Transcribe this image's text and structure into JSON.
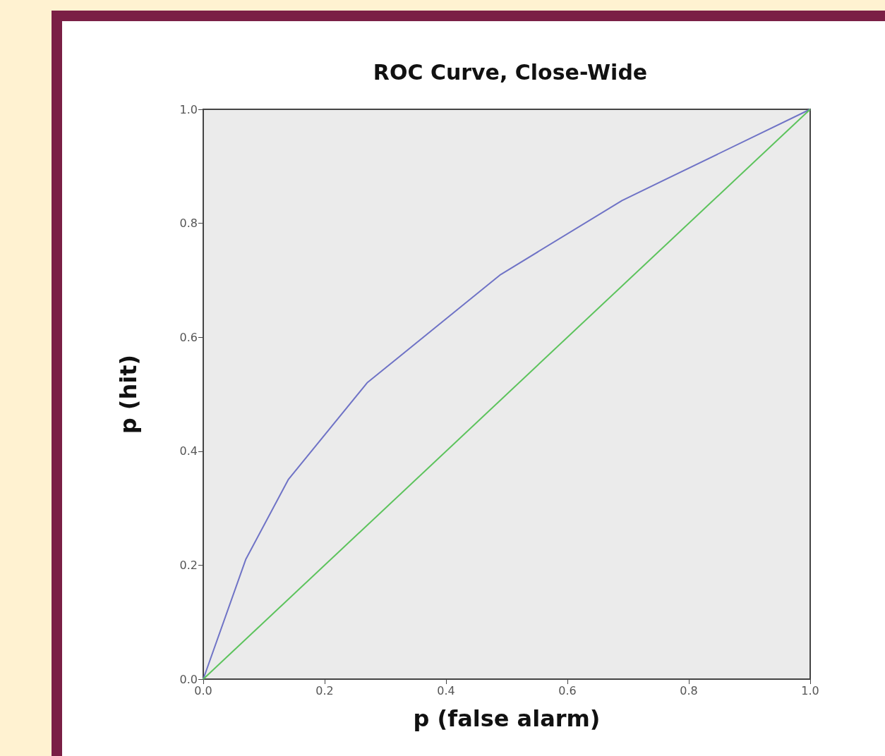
{
  "chart_data": {
    "type": "line",
    "title": "ROC Curve, Close-Wide",
    "xlabel": "p (false alarm)",
    "ylabel": "p (hit)",
    "xlim": [
      0,
      1
    ],
    "ylim": [
      0,
      1
    ],
    "xticks": [
      {
        "value": 0,
        "label": "0.0"
      },
      {
        "value": 0.2,
        "label": "0.2"
      },
      {
        "value": 0.4,
        "label": "0.4"
      },
      {
        "value": 0.6,
        "label": "0.6"
      },
      {
        "value": 0.8,
        "label": "0.8"
      },
      {
        "value": 1,
        "label": "1.0"
      }
    ],
    "yticks": [
      {
        "value": 0,
        "label": "0.0"
      },
      {
        "value": 0.2,
        "label": "0.2"
      },
      {
        "value": 0.4,
        "label": "0.4"
      },
      {
        "value": 0.6,
        "label": "0.6"
      },
      {
        "value": 0.8,
        "label": "0.8"
      },
      {
        "value": 1,
        "label": "1.0"
      }
    ],
    "series": [
      {
        "color": "#6f73c6",
        "x": [
          0,
          0.07,
          0.14,
          0.27,
          0.49,
          0.69,
          1
        ],
        "values": [
          0,
          0.21,
          0.35,
          0.52,
          0.71,
          0.84,
          1
        ]
      },
      {
        "color": "#5cc35c",
        "x": [
          0,
          1
        ],
        "values": [
          0,
          1
        ]
      }
    ]
  }
}
